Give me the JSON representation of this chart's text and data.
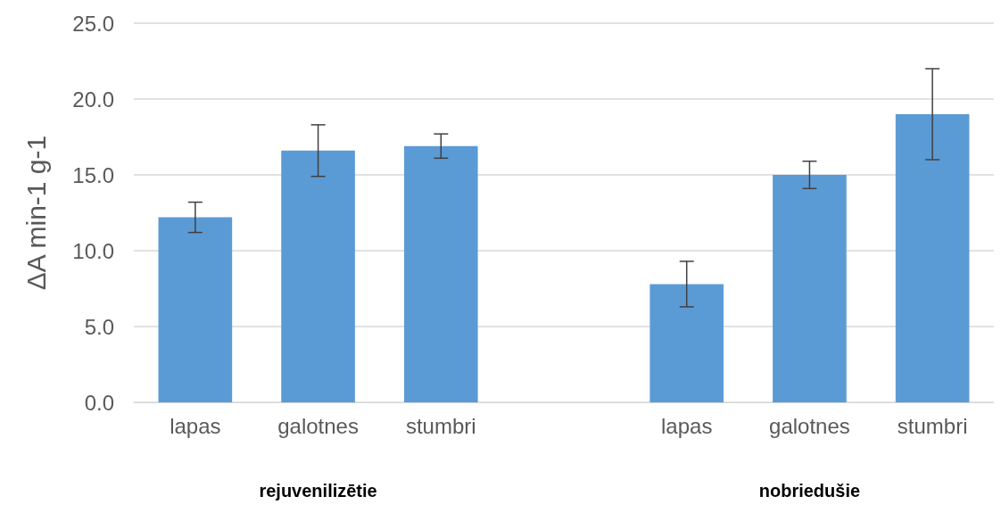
{
  "chart_data": {
    "type": "bar",
    "ylabel": "ΔA min-1 g-1",
    "categories": [
      "lapas",
      "galotnes",
      "stumbri",
      null,
      "lapas",
      "galotnes",
      "stumbri"
    ],
    "values": [
      12.2,
      16.6,
      16.9,
      null,
      7.8,
      15.0,
      19.0
    ],
    "errors": [
      1.0,
      1.7,
      0.8,
      null,
      1.5,
      0.9,
      3.0
    ],
    "color": "#5b9bd5",
    "ylim": [
      0,
      25
    ],
    "yticks": [
      {
        "value": 0,
        "label": "0.0"
      },
      {
        "value": 5,
        "label": "5.0"
      },
      {
        "value": 10,
        "label": "10.0"
      },
      {
        "value": 15,
        "label": "15.0"
      },
      {
        "value": 20,
        "label": "20.0"
      },
      {
        "value": 25,
        "label": "25.0"
      }
    ],
    "grid": "y",
    "annotations": [
      "rejuvenilizētie",
      "nobriedušie"
    ]
  }
}
